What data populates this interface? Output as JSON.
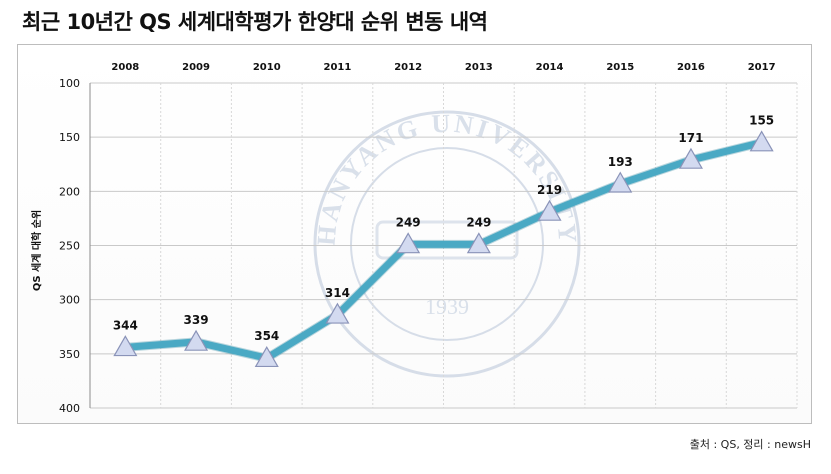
{
  "title": "최근 10년간 QS 세계대학평가 한양대 순위 변동 내역",
  "source": "출처 : QS, 정리 : newsH",
  "watermark": {
    "top_text": "HANYANG UNIVERSITY",
    "year": "1939"
  },
  "colors": {
    "line": "#4aa9c4",
    "marker_fill": "#d3daf0",
    "marker_stroke": "#8a93b8",
    "grid": "#c9c9c9"
  },
  "chart_data": {
    "type": "line",
    "title": "",
    "xlabel": "",
    "ylabel": "QS 세계 대학 순위",
    "categories": [
      "2008",
      "2009",
      "2010",
      "2011",
      "2012",
      "2013",
      "2014",
      "2015",
      "2016",
      "2017"
    ],
    "series": [
      {
        "values": [
          344,
          339,
          354,
          314,
          249,
          249,
          219,
          193,
          171,
          155
        ]
      }
    ],
    "yticks": [
      "100",
      "150",
      "200",
      "250",
      "300",
      "350",
      "400"
    ],
    "ylim": [
      100,
      400
    ],
    "y_inverted": true,
    "x_axis_position": "top",
    "grid": true,
    "legend": "none"
  }
}
